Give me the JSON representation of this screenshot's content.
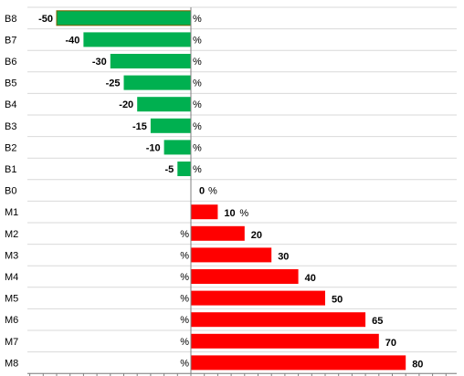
{
  "colors": {
    "negative_fill": "#00b050",
    "positive_fill": "#ff0000",
    "grid_line": "#d9d9d9",
    "axis_line": "#808080",
    "selected_outline": "#7f6000"
  },
  "chart_data": {
    "type": "bar",
    "orientation": "horizontal",
    "categories": [
      "B8",
      "B7",
      "B6",
      "B5",
      "B4",
      "B3",
      "B2",
      "B1",
      "B0",
      "M1",
      "M2",
      "M3",
      "M4",
      "M5",
      "M6",
      "M7",
      "M8"
    ],
    "values": [
      -50,
      -40,
      -30,
      -25,
      -20,
      -15,
      -10,
      -5,
      0,
      10,
      20,
      30,
      40,
      50,
      65,
      70,
      80
    ],
    "value_labels": [
      "-50",
      "-40",
      "-30",
      "-25",
      "-20",
      "-15",
      "-10",
      "-5",
      "0",
      "10",
      "20",
      "30",
      "40",
      "50",
      "65",
      "70",
      "80"
    ],
    "unit_label": "%",
    "xlim": [
      -100,
      100
    ],
    "grid": true,
    "legend": "none",
    "selected_category": "B8"
  }
}
